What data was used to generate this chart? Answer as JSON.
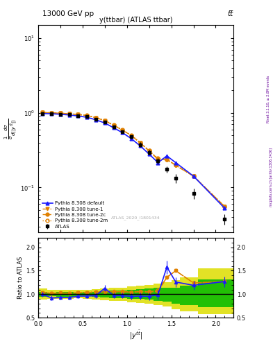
{
  "title_top": "13000 GeV pp",
  "title_right": "tt̅",
  "plot_title": "y(ttbar) (ATLAS ttbar)",
  "xlabel": "|y^{t\\bar{t}}|",
  "ylabel_main": "1/σ dσ/d(|y^{t}|)",
  "ylabel_ratio": "Ratio to ATLAS",
  "watermark": "ATLAS_2020_I1801434",
  "atlas_x": [
    0.05,
    0.15,
    0.25,
    0.35,
    0.45,
    0.55,
    0.65,
    0.75,
    0.85,
    0.95,
    1.05,
    1.15,
    1.25,
    1.35,
    1.45,
    1.55,
    1.75,
    2.1
  ],
  "atlas_y": [
    0.975,
    0.975,
    0.96,
    0.945,
    0.92,
    0.885,
    0.82,
    0.75,
    0.645,
    0.555,
    0.475,
    0.375,
    0.295,
    0.225,
    0.175,
    0.132,
    0.083,
    0.038
  ],
  "atlas_yerr": [
    0.018,
    0.018,
    0.018,
    0.018,
    0.018,
    0.018,
    0.022,
    0.022,
    0.026,
    0.026,
    0.026,
    0.026,
    0.022,
    0.022,
    0.018,
    0.018,
    0.013,
    0.006
  ],
  "pythia_default_y": [
    0.975,
    0.97,
    0.955,
    0.935,
    0.905,
    0.87,
    0.805,
    0.73,
    0.63,
    0.54,
    0.45,
    0.36,
    0.28,
    0.215,
    0.265,
    0.215,
    0.142,
    0.053
  ],
  "pythia_tune1_y": [
    1.01,
    0.995,
    0.985,
    0.965,
    0.948,
    0.915,
    0.855,
    0.785,
    0.68,
    0.585,
    0.495,
    0.395,
    0.308,
    0.238,
    0.238,
    0.198,
    0.142,
    0.056
  ],
  "pythia_tune2c_y": [
    1.005,
    0.998,
    0.988,
    0.968,
    0.95,
    0.918,
    0.858,
    0.785,
    0.68,
    0.585,
    0.495,
    0.395,
    0.31,
    0.24,
    0.238,
    0.198,
    0.142,
    0.056
  ],
  "pythia_tune2m_y": [
    1.01,
    1.002,
    0.988,
    0.968,
    0.955,
    0.922,
    0.862,
    0.79,
    0.685,
    0.59,
    0.5,
    0.4,
    0.312,
    0.245,
    0.238,
    0.198,
    0.142,
    0.056
  ],
  "ratio_default_y": [
    1.0,
    0.92,
    0.93,
    0.93,
    0.96,
    0.96,
    0.97,
    1.13,
    0.97,
    0.97,
    0.955,
    0.96,
    0.955,
    0.99,
    1.58,
    1.26,
    1.19,
    1.27
  ],
  "ratio_default_yerr": [
    0.05,
    0.05,
    0.05,
    0.05,
    0.05,
    0.05,
    0.06,
    0.07,
    0.06,
    0.06,
    0.07,
    0.07,
    0.08,
    0.1,
    0.14,
    0.1,
    0.1,
    0.11
  ],
  "ratio_tune1_y": [
    1.035,
    1.02,
    1.025,
    1.022,
    1.03,
    1.033,
    1.045,
    1.047,
    1.054,
    1.054,
    1.042,
    1.055,
    1.044,
    1.058,
    1.36,
    1.5,
    1.24,
    1.27
  ],
  "ratio_tune2c_y": [
    1.03,
    1.023,
    1.028,
    1.024,
    1.032,
    1.036,
    1.047,
    1.047,
    1.054,
    1.054,
    1.042,
    1.055,
    1.049,
    1.063,
    1.36,
    1.5,
    1.24,
    1.27
  ],
  "ratio_tune2m_y": [
    1.035,
    1.027,
    1.028,
    1.024,
    1.038,
    1.042,
    1.052,
    1.052,
    1.059,
    1.059,
    1.052,
    1.065,
    1.057,
    1.088,
    1.36,
    1.5,
    1.24,
    1.27
  ],
  "bin_lo": [
    0.0,
    0.1,
    0.2,
    0.3,
    0.4,
    0.5,
    0.6,
    0.7,
    0.8,
    0.9,
    1.0,
    1.1,
    1.2,
    1.3,
    1.4,
    1.5,
    1.6,
    1.8
  ],
  "bin_hi": [
    0.1,
    0.2,
    0.3,
    0.4,
    0.5,
    0.6,
    0.7,
    0.8,
    0.9,
    1.0,
    1.1,
    1.2,
    1.3,
    1.4,
    1.5,
    1.6,
    1.8,
    2.2
  ],
  "inner_lo": [
    0.945,
    0.958,
    0.953,
    0.953,
    0.962,
    0.957,
    0.947,
    0.938,
    0.922,
    0.922,
    0.907,
    0.897,
    0.882,
    0.862,
    0.842,
    0.802,
    0.772,
    0.722
  ],
  "inner_hi": [
    1.055,
    1.042,
    1.047,
    1.047,
    1.038,
    1.043,
    1.053,
    1.062,
    1.078,
    1.078,
    1.093,
    1.103,
    1.118,
    1.138,
    1.138,
    1.138,
    1.188,
    1.318
  ],
  "outer_lo": [
    0.88,
    0.905,
    0.9,
    0.9,
    0.91,
    0.905,
    0.89,
    0.875,
    0.855,
    0.855,
    0.835,
    0.82,
    0.805,
    0.775,
    0.745,
    0.685,
    0.635,
    0.575
  ],
  "outer_hi": [
    1.12,
    1.095,
    1.1,
    1.1,
    1.09,
    1.095,
    1.11,
    1.125,
    1.145,
    1.145,
    1.165,
    1.18,
    1.195,
    1.225,
    1.255,
    1.295,
    1.365,
    1.545
  ],
  "color_blue": "#1a1aff",
  "color_orange": "#e08000",
  "color_black": "#000000",
  "color_green_inner": "#00bb00",
  "color_yellow_outer": "#dddd00",
  "ylim_main": [
    0.025,
    15.0
  ],
  "ylim_ratio": [
    0.5,
    2.2
  ],
  "xlim": [
    0.0,
    2.2
  ]
}
